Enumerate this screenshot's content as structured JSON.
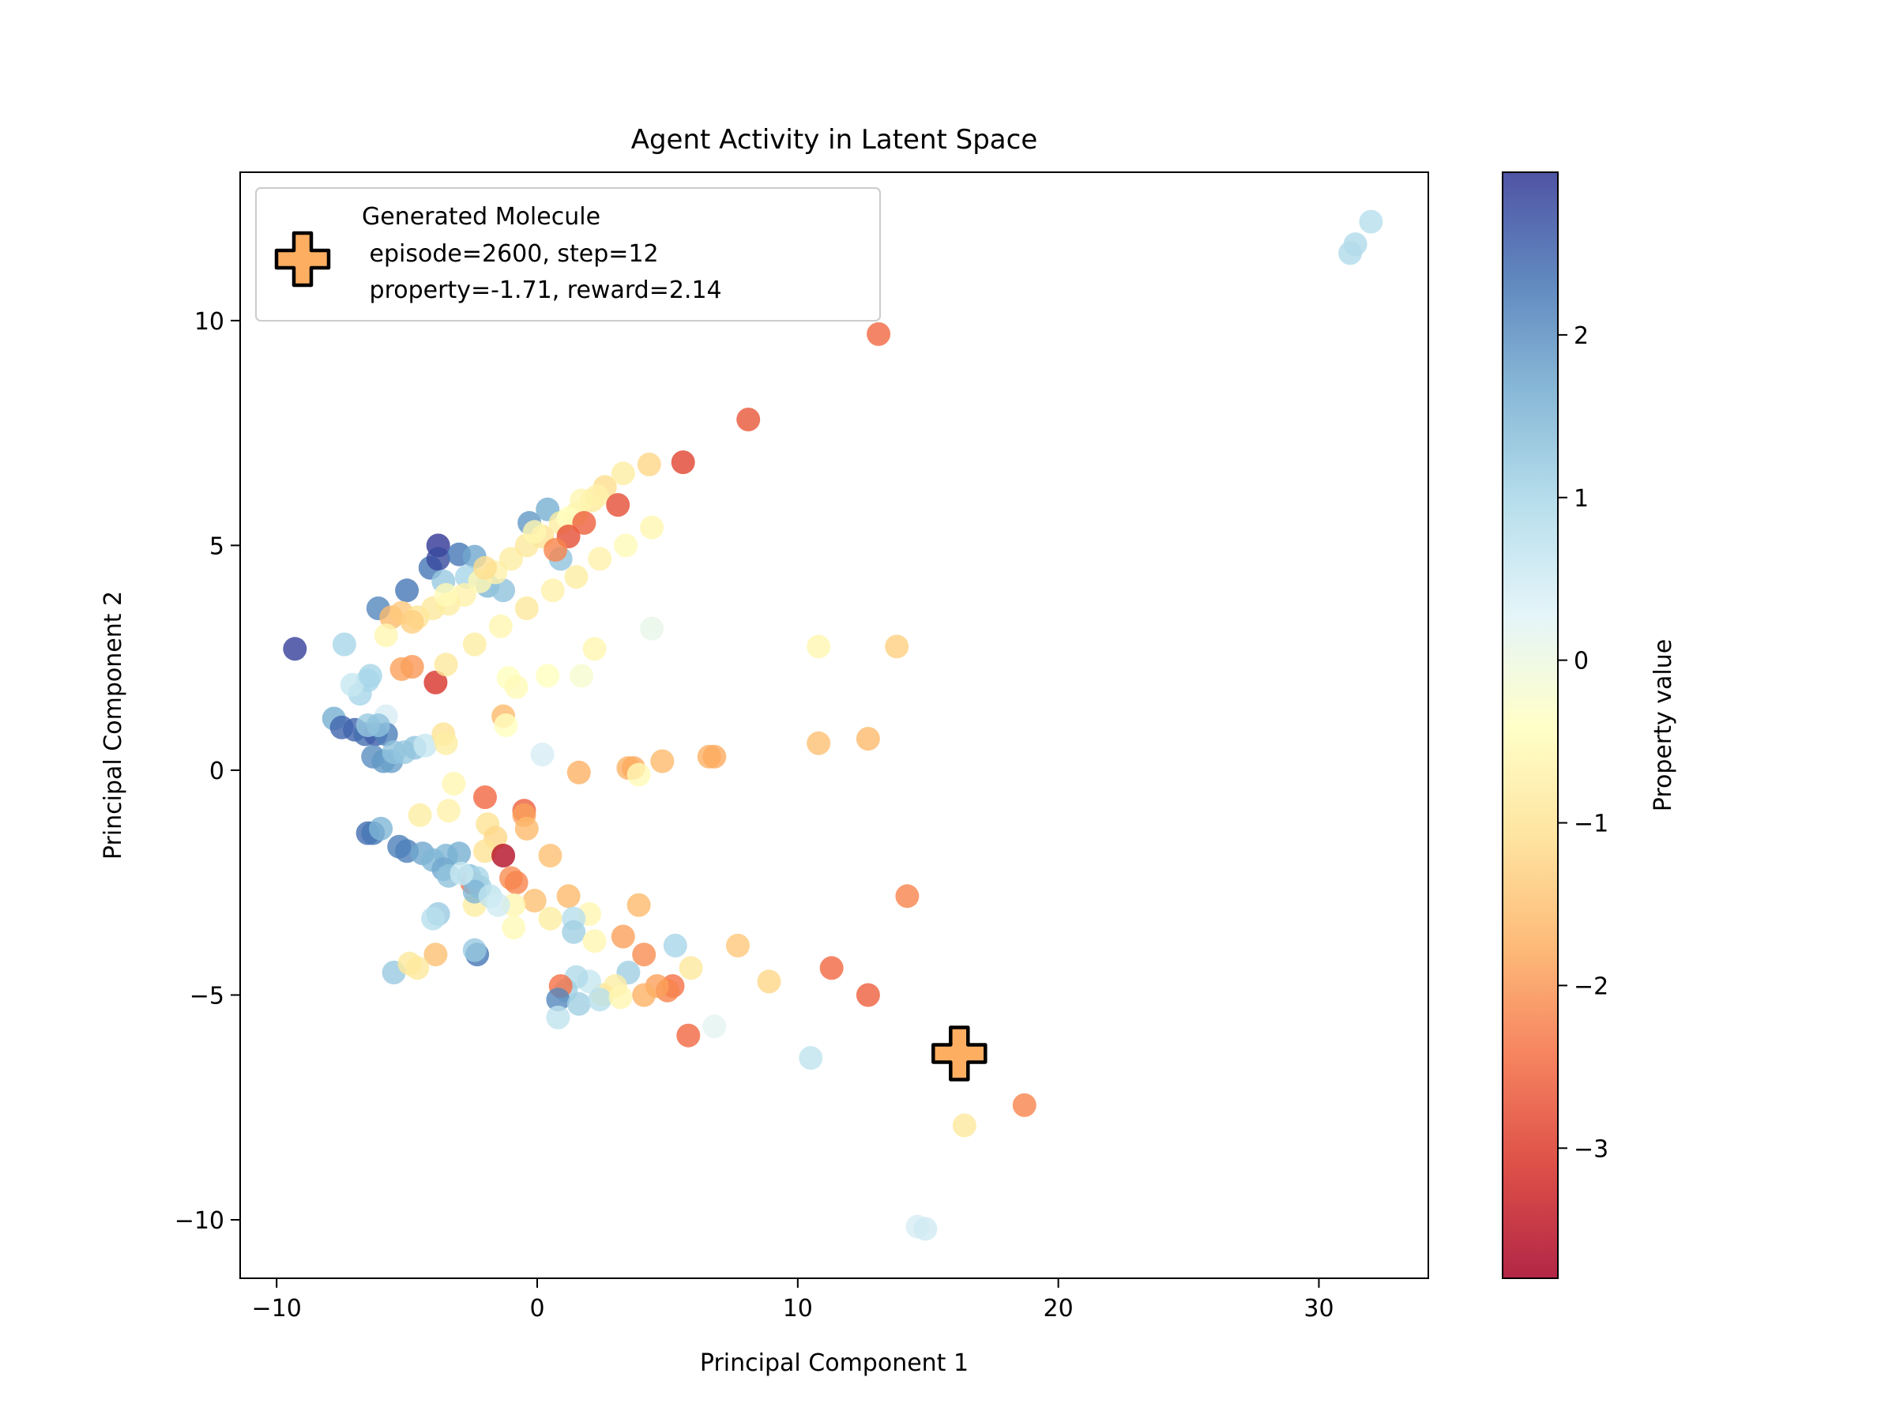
{
  "chart_data": {
    "type": "scatter",
    "title": "Agent Activity in Latent Space",
    "xlabel": "Principal Component 1",
    "ylabel": "Principal Component 2",
    "xlim": [
      -11.4,
      34.2
    ],
    "ylim": [
      -11.3,
      13.3
    ],
    "x_ticks": [
      -10,
      0,
      10,
      20,
      30
    ],
    "y_ticks": [
      -10,
      -5,
      0,
      5,
      10
    ],
    "x_tick_labels": [
      "−10",
      "0",
      "10",
      "20",
      "30"
    ],
    "y_tick_labels": [
      "−10",
      "−5",
      "0",
      "5",
      "10"
    ],
    "grid": false,
    "colorbar": {
      "label": "Property value",
      "colormap": "RdYlBu",
      "range": [
        -3.8,
        3.0
      ],
      "ticks": [
        2,
        1,
        0,
        -1,
        -2,
        -3
      ],
      "tick_labels": [
        "2",
        "1",
        "0",
        "−1",
        "−2",
        "−3"
      ],
      "colors": [
        "#a50026",
        "#d73027",
        "#f46d43",
        "#fdae61",
        "#fee090",
        "#ffffbf",
        "#e0f3f8",
        "#abd9e9",
        "#74add1",
        "#4575b4",
        "#313695"
      ]
    },
    "legend": {
      "position": "top-left",
      "marker_color": "#fdae61",
      "line1": "Generated Molecule",
      "line2": " episode=2600, step=12",
      "line3": " property=-1.71, reward=2.14"
    },
    "highlight": {
      "name": "Generated Molecule",
      "x": 16.2,
      "y": -6.3,
      "value": -1.71
    },
    "series": [
      {
        "points": [
          [
            -9.3,
            2.7,
            2.9
          ],
          [
            -7.4,
            2.8,
            1.0
          ],
          [
            -6.5,
            2.0,
            1.0
          ],
          [
            -6.8,
            1.7,
            1.0
          ],
          [
            -7.1,
            1.9,
            0.6
          ],
          [
            -5.8,
            1.2,
            0.4
          ],
          [
            -6.4,
            2.1,
            1.0
          ],
          [
            -7.8,
            1.15,
            1.6
          ],
          [
            -7.5,
            0.95,
            2.5
          ],
          [
            -7.0,
            0.9,
            2.5
          ],
          [
            -6.6,
            0.8,
            2.4
          ],
          [
            -6.2,
            0.8,
            2.6
          ],
          [
            -5.8,
            0.8,
            2.2
          ],
          [
            -6.5,
            1.0,
            1.2
          ],
          [
            -6.1,
            1.0,
            1.3
          ],
          [
            -6.3,
            0.3,
            2.0
          ],
          [
            -5.9,
            0.2,
            1.9
          ],
          [
            -5.6,
            0.2,
            1.8
          ],
          [
            -5.1,
            0.4,
            1.2
          ],
          [
            -4.7,
            0.5,
            1.3
          ],
          [
            -4.3,
            0.55,
            0.6
          ],
          [
            -5.5,
            0.4,
            1.3
          ],
          [
            -6.1,
            3.6,
            2.1
          ],
          [
            -5.0,
            4.0,
            2.3
          ],
          [
            -4.1,
            4.5,
            2.3
          ],
          [
            -3.8,
            5.0,
            3.0
          ],
          [
            -3.8,
            4.7,
            2.8
          ],
          [
            -3.0,
            4.8,
            2.3
          ],
          [
            -2.4,
            4.75,
            1.7
          ],
          [
            -1.9,
            4.1,
            1.5
          ],
          [
            -1.3,
            4.0,
            1.3
          ],
          [
            -0.3,
            5.5,
            1.9
          ],
          [
            0.4,
            5.8,
            1.6
          ],
          [
            0.9,
            4.7,
            1.3
          ],
          [
            -3.6,
            4.2,
            1.2
          ],
          [
            -2.7,
            4.3,
            1.0
          ],
          [
            -5.6,
            3.4,
            -1.6
          ],
          [
            -5.2,
            3.5,
            -1.4
          ],
          [
            -4.6,
            3.4,
            -1.0
          ],
          [
            -4.0,
            3.6,
            -0.9
          ],
          [
            -3.4,
            3.7,
            -0.8
          ],
          [
            -2.8,
            3.9,
            -0.7
          ],
          [
            -2.2,
            4.2,
            -0.6
          ],
          [
            -1.6,
            4.4,
            -0.7
          ],
          [
            -1.0,
            4.7,
            -0.8
          ],
          [
            -0.4,
            5.0,
            -0.9
          ],
          [
            0.2,
            5.2,
            -1.0
          ],
          [
            0.9,
            5.5,
            -0.8
          ],
          [
            1.5,
            5.7,
            -0.7
          ],
          [
            2.1,
            6.0,
            -0.9
          ],
          [
            2.6,
            6.3,
            -1.1
          ],
          [
            3.3,
            6.6,
            -0.8
          ],
          [
            4.3,
            6.8,
            -1.2
          ],
          [
            -0.1,
            5.3,
            -0.6
          ],
          [
            1.7,
            6.0,
            -0.6
          ],
          [
            2.3,
            6.1,
            -0.7
          ],
          [
            1.2,
            5.6,
            -0.4
          ],
          [
            -2.0,
            4.5,
            -1.1
          ],
          [
            -4.8,
            3.3,
            -1.3
          ],
          [
            -3.5,
            3.9,
            -0.5
          ],
          [
            -5.8,
            3.0,
            -0.6
          ],
          [
            -4.8,
            2.3,
            -2.0
          ],
          [
            -5.2,
            2.25,
            -1.9
          ],
          [
            -3.9,
            1.95,
            -3.1
          ],
          [
            -3.5,
            2.35,
            -0.9
          ],
          [
            -2.4,
            2.8,
            -0.8
          ],
          [
            -1.4,
            3.2,
            -0.6
          ],
          [
            -0.4,
            3.6,
            -0.9
          ],
          [
            0.6,
            4.0,
            -0.7
          ],
          [
            1.5,
            4.3,
            -0.8
          ],
          [
            2.4,
            4.7,
            -0.7
          ],
          [
            3.4,
            5.0,
            -0.5
          ],
          [
            4.4,
            5.4,
            -0.6
          ],
          [
            4.4,
            3.15,
            0.1
          ],
          [
            2.2,
            2.7,
            -0.6
          ],
          [
            0.4,
            2.1,
            -0.4
          ],
          [
            1.7,
            2.1,
            -0.2
          ],
          [
            -1.1,
            2.05,
            -0.4
          ],
          [
            -0.8,
            1.85,
            -0.5
          ],
          [
            -1.3,
            1.2,
            -1.6
          ],
          [
            -1.2,
            1.0,
            -0.4
          ],
          [
            -3.6,
            0.8,
            -1.0
          ],
          [
            -3.5,
            0.6,
            -0.8
          ],
          [
            1.2,
            5.2,
            -2.8
          ],
          [
            1.8,
            5.5,
            -2.6
          ],
          [
            3.1,
            5.9,
            -2.8
          ],
          [
            5.6,
            6.85,
            -2.9
          ],
          [
            8.1,
            7.8,
            -2.7
          ],
          [
            13.1,
            9.7,
            -2.5
          ],
          [
            0.7,
            4.9,
            -2.2
          ],
          [
            0.2,
            0.35,
            0.4
          ],
          [
            1.6,
            -0.05,
            -1.7
          ],
          [
            3.5,
            0.05,
            -1.7
          ],
          [
            3.7,
            0.05,
            -1.8
          ],
          [
            4.8,
            0.2,
            -1.6
          ],
          [
            6.6,
            0.3,
            -1.7
          ],
          [
            6.8,
            0.3,
            -1.8
          ],
          [
            10.8,
            0.6,
            -1.5
          ],
          [
            12.7,
            0.7,
            -1.6
          ],
          [
            10.8,
            2.75,
            -0.6
          ],
          [
            13.8,
            2.75,
            -1.3
          ],
          [
            3.9,
            -0.1,
            -0.5
          ],
          [
            -3.2,
            -0.3,
            -0.6
          ],
          [
            -3.4,
            -0.9,
            -0.7
          ],
          [
            -4.5,
            -1.0,
            -0.8
          ],
          [
            -2.0,
            -0.6,
            -2.5
          ],
          [
            -0.5,
            -0.9,
            -2.6
          ],
          [
            -0.5,
            -1.0,
            -1.9
          ],
          [
            -0.4,
            -1.3,
            -1.6
          ],
          [
            -1.9,
            -1.2,
            -1.0
          ],
          [
            -1.6,
            -1.5,
            -1.2
          ],
          [
            -2.0,
            -1.8,
            -1.0
          ],
          [
            -1.3,
            -1.9,
            -3.6
          ],
          [
            -1.0,
            -2.4,
            -2.1
          ],
          [
            0.5,
            -1.9,
            -1.5
          ],
          [
            1.2,
            -2.8,
            -1.6
          ],
          [
            3.9,
            -3.0,
            -1.6
          ],
          [
            -2.5,
            -2.5,
            -2.4
          ],
          [
            -0.8,
            -2.5,
            -2.2
          ],
          [
            -0.1,
            -2.9,
            -1.5
          ],
          [
            -2.4,
            -3.0,
            -0.8
          ],
          [
            -0.9,
            -3.0,
            -0.6
          ],
          [
            0.5,
            -3.3,
            -0.8
          ],
          [
            2.0,
            -3.2,
            -0.6
          ],
          [
            -0.9,
            -3.5,
            -0.5
          ],
          [
            -6.5,
            -1.4,
            2.4
          ],
          [
            -6.3,
            -1.4,
            2.3
          ],
          [
            -6.0,
            -1.3,
            1.5
          ],
          [
            -5.3,
            -1.7,
            2.2
          ],
          [
            -5.0,
            -1.8,
            2.2
          ],
          [
            -4.4,
            -1.85,
            1.7
          ],
          [
            -3.5,
            -1.9,
            1.5
          ],
          [
            -3.0,
            -1.85,
            1.6
          ],
          [
            -4.0,
            -2.0,
            1.5
          ],
          [
            -3.6,
            -2.2,
            1.7
          ],
          [
            -3.4,
            -2.35,
            1.3
          ],
          [
            -2.6,
            -2.35,
            1.4
          ],
          [
            -2.3,
            -2.4,
            1.0
          ],
          [
            -2.2,
            -2.6,
            1.1
          ],
          [
            -2.4,
            -2.7,
            1.5
          ],
          [
            -1.8,
            -2.8,
            0.7
          ],
          [
            -1.5,
            -3.0,
            0.5
          ],
          [
            -2.9,
            -2.3,
            0.6
          ],
          [
            -3.8,
            -3.2,
            1.2
          ],
          [
            -4.0,
            -3.3,
            0.8
          ],
          [
            -2.3,
            -4.1,
            2.3
          ],
          [
            -2.4,
            -4.0,
            1.2
          ],
          [
            -5.5,
            -4.5,
            1.2
          ],
          [
            -3.9,
            -4.1,
            -1.5
          ],
          [
            -4.9,
            -4.3,
            -0.9
          ],
          [
            -4.6,
            -4.4,
            -0.9
          ],
          [
            1.4,
            -3.3,
            0.8
          ],
          [
            1.4,
            -3.6,
            1.1
          ],
          [
            2.2,
            -3.8,
            -0.6
          ],
          [
            3.3,
            -3.7,
            -1.9
          ],
          [
            4.1,
            -4.1,
            -2.1
          ],
          [
            5.3,
            -3.9,
            1.0
          ],
          [
            5.9,
            -4.4,
            -0.9
          ],
          [
            7.7,
            -3.9,
            -1.4
          ],
          [
            8.9,
            -4.7,
            -1.2
          ],
          [
            11.3,
            -4.4,
            -2.5
          ],
          [
            12.7,
            -5.0,
            -2.6
          ],
          [
            14.2,
            -2.8,
            -2.2
          ],
          [
            5.2,
            -4.8,
            -2.4
          ],
          [
            5.0,
            -4.9,
            -2.2
          ],
          [
            4.6,
            -4.8,
            -1.9
          ],
          [
            4.1,
            -5.0,
            -1.7
          ],
          [
            3.5,
            -4.5,
            1.1
          ],
          [
            3.0,
            -4.8,
            -0.8
          ],
          [
            2.5,
            -5.0,
            -0.9
          ],
          [
            2.0,
            -4.7,
            0.6
          ],
          [
            1.5,
            -4.6,
            0.9
          ],
          [
            1.1,
            -4.9,
            1.1
          ],
          [
            0.9,
            -4.8,
            -2.4
          ],
          [
            0.8,
            -5.1,
            2.1
          ],
          [
            0.8,
            -5.5,
            0.7
          ],
          [
            1.6,
            -5.2,
            1.1
          ],
          [
            2.4,
            -5.1,
            0.8
          ],
          [
            3.2,
            -5.05,
            -0.6
          ],
          [
            5.8,
            -5.9,
            -2.5
          ],
          [
            6.8,
            -5.7,
            0.2
          ],
          [
            10.5,
            -6.4,
            0.7
          ],
          [
            16.4,
            -7.9,
            -0.9
          ],
          [
            18.7,
            -7.45,
            -2.2
          ],
          [
            14.6,
            -10.15,
            0.4
          ],
          [
            14.9,
            -10.2,
            0.5
          ],
          [
            31.2,
            11.5,
            0.9
          ],
          [
            31.4,
            11.7,
            0.9
          ],
          [
            32.0,
            12.2,
            0.8
          ]
        ]
      }
    ]
  }
}
